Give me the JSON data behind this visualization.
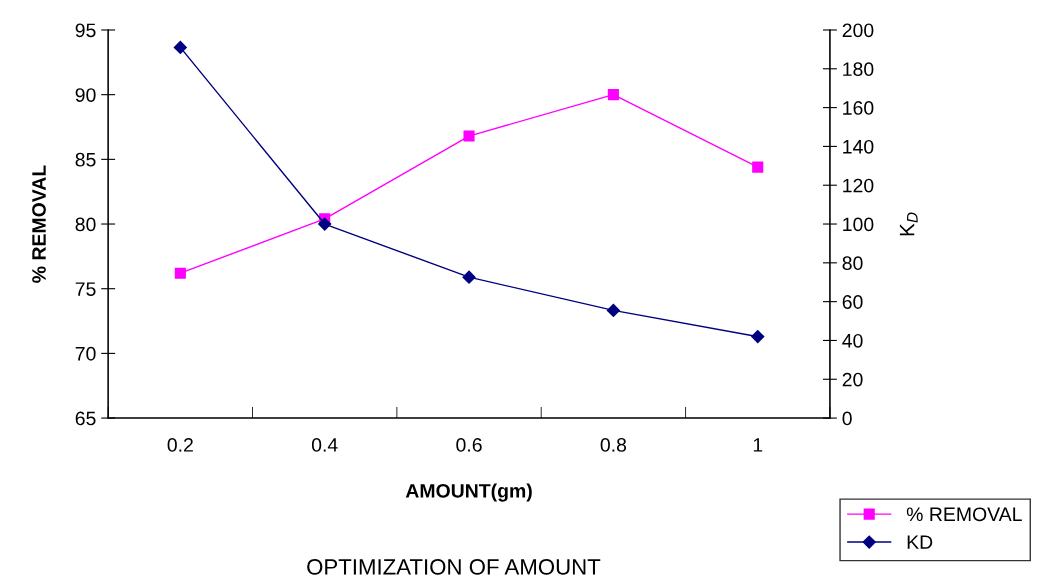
{
  "chart_data": {
    "type": "line",
    "title": "OPTIMIZATION OF AMOUNT",
    "xlabel": "AMOUNT(gm)",
    "ylabel": "% REMOVAL",
    "y2label": "K$_{D}$",
    "categories": [
      "0.2",
      "0.4",
      "0.6",
      "0.8",
      "1"
    ],
    "series": [
      {
        "name": "% REMOVAL",
        "color": "#ff00ff",
        "marker": "square",
        "values": [
          76.2,
          80.4,
          86.8,
          90.0,
          84.4
        ]
      },
      {
        "name": "KD",
        "color": "#000080",
        "marker": "diamond",
        "axis": "y2",
        "values": [
          191,
          100,
          72.6,
          55.5,
          42
        ]
      }
    ],
    "ylim": [
      65,
      95
    ],
    "yticks": [
      65,
      70,
      75,
      80,
      85,
      90,
      95
    ],
    "y2lim": [
      0,
      200
    ],
    "y2ticks": [
      0,
      20,
      40,
      60,
      80,
      100,
      120,
      140,
      160,
      180,
      200
    ],
    "grid": false,
    "legend": "bottom right",
    "line_style": "solid"
  }
}
